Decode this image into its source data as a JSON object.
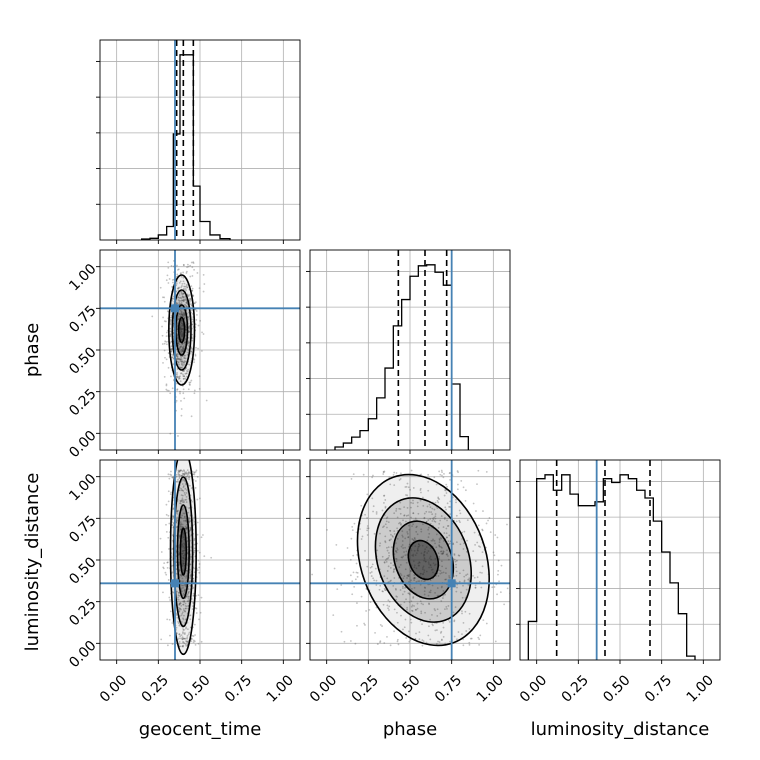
{
  "colors": {
    "truth": "#4682b4",
    "hist": "#000000",
    "grid": "#b0b0b0",
    "scatter": "#555555",
    "fill": "#222222"
  },
  "chart_data": {
    "type": "corner",
    "parameters": [
      "geocent_time",
      "phase",
      "luminosity_distance"
    ],
    "axis_range": [
      -0.1,
      1.1
    ],
    "ticks": [
      0.0,
      0.25,
      0.5,
      0.75,
      1.0
    ],
    "tick_labels": [
      "0.00",
      "0.25",
      "0.50",
      "0.75",
      "1.00"
    ],
    "grid": true,
    "truths": {
      "geocent_time": 0.35,
      "phase": 0.75,
      "luminosity_distance": 0.36
    },
    "quantiles": {
      "geocent_time": [
        0.36,
        0.4,
        0.46
      ],
      "phase": [
        0.43,
        0.59,
        0.72
      ],
      "luminosity_distance": [
        0.12,
        0.41,
        0.68
      ]
    },
    "histograms": {
      "geocent_time": {
        "bin_edges": [
          0.15,
          0.2,
          0.25,
          0.3,
          0.34,
          0.38,
          0.42,
          0.46,
          0.5,
          0.56,
          0.62,
          0.68
        ],
        "counts": [
          0.3,
          0.5,
          1.5,
          4.0,
          31.5,
          55.0,
          55.0,
          16.0,
          5.5,
          1.5,
          0.4
        ]
      },
      "phase": {
        "bin_edges": [
          0.05,
          0.1,
          0.15,
          0.2,
          0.25,
          0.3,
          0.35,
          0.4,
          0.45,
          0.5,
          0.55,
          0.6,
          0.65,
          0.7,
          0.75,
          0.8,
          0.85
        ],
        "counts": [
          0.6,
          1.4,
          2.6,
          3.9,
          6.3,
          10.5,
          16.5,
          25.0,
          30.3,
          35.0,
          37.1,
          37.3,
          35.8,
          33.2,
          13.3,
          2.7
        ]
      },
      "luminosity_distance": {
        "bin_edges": [
          -0.05,
          0.0,
          0.05,
          0.1,
          0.15,
          0.2,
          0.25,
          0.3,
          0.35,
          0.4,
          0.45,
          0.5,
          0.55,
          0.6,
          0.65,
          0.7,
          0.75,
          0.8,
          0.85,
          0.9,
          0.95
        ],
        "counts": [
          1.0,
          4.7,
          4.8,
          4.4,
          4.8,
          4.3,
          4.0,
          4.0,
          4.1,
          4.7,
          4.6,
          4.8,
          4.7,
          4.4,
          4.2,
          3.6,
          2.8,
          2.0,
          1.2,
          0.1
        ]
      }
    },
    "posterior_2d": [
      {
        "x": "geocent_time",
        "y": "phase",
        "center": [
          0.39,
          0.62
        ],
        "spread": [
          0.035,
          0.15
        ]
      },
      {
        "x": "geocent_time",
        "y": "luminosity_distance",
        "center": [
          0.4,
          0.55
        ],
        "spread": [
          0.035,
          0.28
        ]
      },
      {
        "x": "phase",
        "y": "luminosity_distance",
        "center": [
          0.58,
          0.5
        ],
        "spread": [
          0.17,
          0.24
        ]
      }
    ]
  }
}
